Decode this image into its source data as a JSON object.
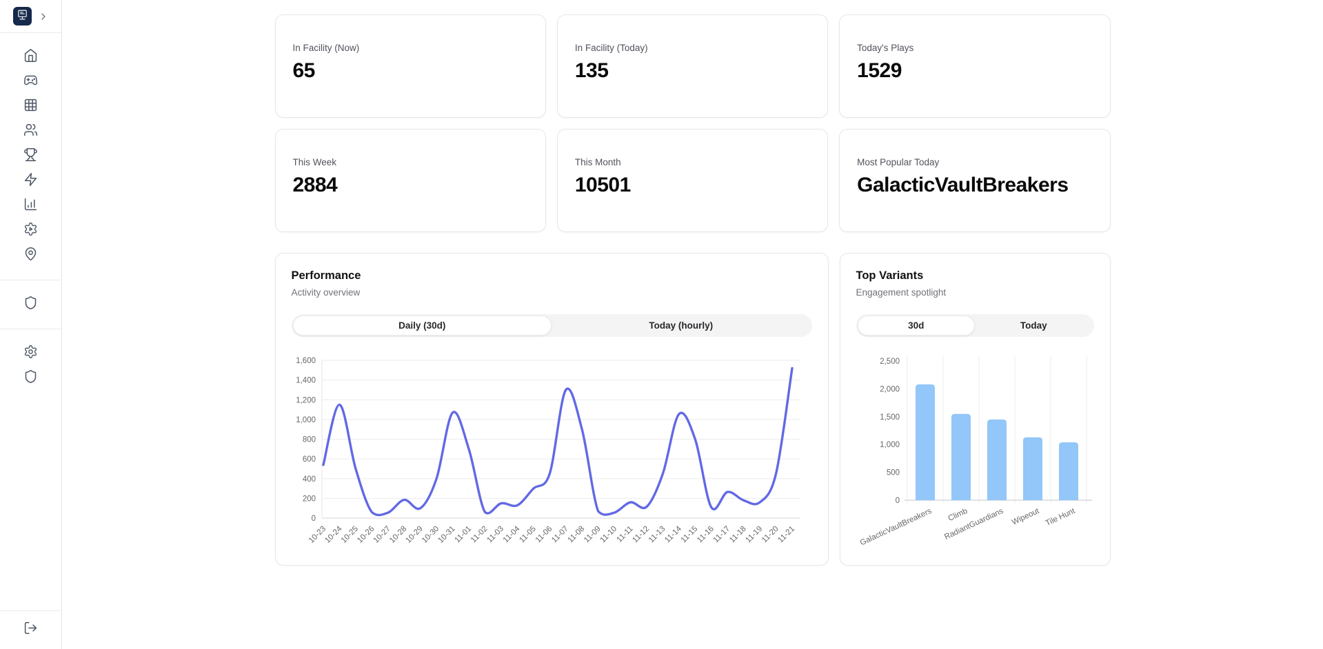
{
  "sidebar": {
    "logo_icon": "arcade-cabinet-icon",
    "collapse_icon": "chevron-right-icon",
    "nav_primary_icons": [
      "home-icon",
      "gamepad-icon",
      "grid-icon",
      "users-icon",
      "trophy-icon",
      "zap-icon",
      "bar-chart-icon",
      "gear-play-icon",
      "map-pin-icon"
    ],
    "nav_security_icons": [
      "shield-icon"
    ],
    "nav_admin_icons": [
      "gear-icon",
      "shield-icon"
    ],
    "logout_icon": "log-out-icon",
    "logo_bg_color": "#16294b"
  },
  "stats": [
    {
      "label": "In Facility (Now)",
      "value": "65"
    },
    {
      "label": "In Facility (Today)",
      "value": "135"
    },
    {
      "label": "Today's Plays",
      "value": "1529"
    },
    {
      "label": "This Week",
      "value": "2884"
    },
    {
      "label": "This Month",
      "value": "10501"
    },
    {
      "label": "Most Popular Today",
      "value": "GalacticVaultBreakers"
    }
  ],
  "charts": {
    "performance": {
      "title": "Performance",
      "subtitle": "Activity overview",
      "tabs": [
        {
          "label": "Daily (30d)",
          "active": true
        },
        {
          "label": "Today (hourly)",
          "active": false
        }
      ],
      "chart_data": {
        "type": "line",
        "x": [
          "10-23",
          "10-24",
          "10-25",
          "10-26",
          "10-27",
          "10-28",
          "10-29",
          "10-30",
          "10-31",
          "11-01",
          "11-02",
          "11-03",
          "11-04",
          "11-05",
          "11-06",
          "11-07",
          "11-08",
          "11-09",
          "11-10",
          "11-11",
          "11-12",
          "11-13",
          "11-14",
          "11-15",
          "11-16",
          "11-17",
          "11-18",
          "11-19",
          "11-20",
          "11-21"
        ],
        "values": [
          540,
          1150,
          500,
          60,
          55,
          185,
          100,
          400,
          1070,
          700,
          60,
          150,
          130,
          300,
          450,
          1300,
          900,
          70,
          55,
          160,
          115,
          450,
          1055,
          800,
          110,
          265,
          180,
          160,
          450,
          1520
        ],
        "title": "Performance",
        "xlabel": "",
        "ylabel": "",
        "ylim": [
          0,
          1600
        ],
        "ytick_step": 200,
        "grid": "horizontal",
        "legend": "none",
        "line_color": "#6269e4",
        "tick_color": "#666666"
      }
    },
    "top_variants": {
      "title": "Top Variants",
      "subtitle": "Engagement spotlight",
      "tabs": [
        {
          "label": "30d",
          "active": true
        },
        {
          "label": "Today",
          "active": false
        }
      ],
      "chart_data": {
        "type": "bar",
        "categories": [
          "GalacticVaultBreakers",
          "Climb",
          "RadiantGuardians",
          "Wipeout",
          "Tile Hunt"
        ],
        "values": [
          2080,
          1550,
          1450,
          1130,
          1040
        ],
        "title": "Top Variants",
        "xlabel": "",
        "ylabel": "",
        "ylim": [
          0,
          2500
        ],
        "ytick_step": 500,
        "grid": "vertical",
        "legend": "none",
        "bar_color": "#93c6f9",
        "tick_color": "#666666"
      }
    }
  }
}
